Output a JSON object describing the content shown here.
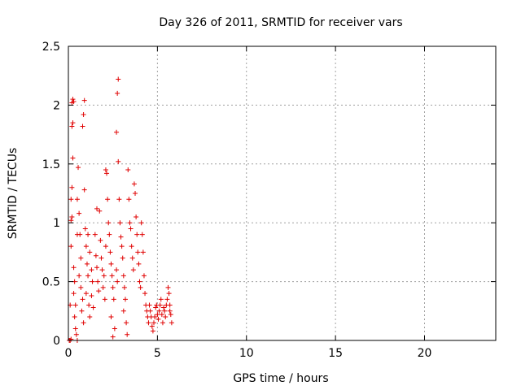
{
  "chart_data": {
    "type": "scatter",
    "title": "Day 326 of 2011, SRMTID for receiver vars",
    "xlabel": "GPS time / hours",
    "ylabel": "SRMTID / TECUs",
    "xlim": [
      0,
      24
    ],
    "ylim": [
      0,
      2.5
    ],
    "grid": true,
    "marker": "+",
    "color": "#e00000",
    "xticks": [
      0,
      5,
      10,
      15,
      20
    ],
    "xtick_labels": [
      "0",
      "5",
      "10",
      "15",
      "20"
    ],
    "yticks": [
      0,
      0.5,
      1,
      1.5,
      2,
      2.5
    ],
    "ytick_labels": [
      "0",
      "0.5",
      "1",
      "1.5",
      "2",
      "2.5"
    ],
    "series": [
      {
        "name": "SRMTID",
        "points": [
          [
            0.05,
            0.0
          ],
          [
            0.1,
            0.0
          ],
          [
            0.15,
            0.01
          ],
          [
            0.1,
            0.3
          ],
          [
            0.15,
            0.8
          ],
          [
            0.15,
            1.02
          ],
          [
            0.2,
            1.05
          ],
          [
            0.15,
            1.2
          ],
          [
            0.2,
            1.3
          ],
          [
            0.25,
            1.55
          ],
          [
            0.2,
            1.82
          ],
          [
            0.25,
            1.85
          ],
          [
            0.2,
            2.02
          ],
          [
            0.25,
            2.05
          ],
          [
            0.3,
            2.03
          ],
          [
            0.3,
            0.62
          ],
          [
            0.35,
            0.5
          ],
          [
            0.3,
            0.4
          ],
          [
            0.4,
            0.3
          ],
          [
            0.35,
            0.2
          ],
          [
            0.4,
            0.1
          ],
          [
            0.45,
            0.05
          ],
          [
            0.5,
            0.0
          ],
          [
            0.5,
            0.9
          ],
          [
            0.55,
            1.47
          ],
          [
            0.5,
            1.2
          ],
          [
            0.6,
            1.08
          ],
          [
            0.65,
            0.9
          ],
          [
            0.7,
            0.7
          ],
          [
            0.6,
            0.55
          ],
          [
            0.7,
            0.45
          ],
          [
            0.8,
            0.35
          ],
          [
            0.75,
            0.25
          ],
          [
            0.85,
            0.15
          ],
          [
            0.8,
            1.82
          ],
          [
            0.85,
            1.92
          ],
          [
            0.9,
            2.04
          ],
          [
            0.9,
            1.28
          ],
          [
            0.95,
            0.95
          ],
          [
            1.0,
            0.8
          ],
          [
            1.05,
            0.65
          ],
          [
            1.1,
            0.55
          ],
          [
            1.0,
            0.4
          ],
          [
            1.15,
            0.3
          ],
          [
            1.2,
            0.2
          ],
          [
            1.1,
            0.9
          ],
          [
            1.2,
            0.75
          ],
          [
            1.3,
            0.6
          ],
          [
            1.35,
            0.5
          ],
          [
            1.3,
            0.38
          ],
          [
            1.4,
            0.28
          ],
          [
            1.5,
            0.9
          ],
          [
            1.55,
            0.72
          ],
          [
            1.6,
            0.62
          ],
          [
            1.65,
            0.5
          ],
          [
            1.7,
            0.42
          ],
          [
            1.6,
            1.12
          ],
          [
            1.75,
            1.1
          ],
          [
            1.8,
            0.85
          ],
          [
            1.85,
            0.7
          ],
          [
            1.9,
            0.6
          ],
          [
            2.0,
            0.55
          ],
          [
            1.95,
            0.45
          ],
          [
            2.05,
            0.35
          ],
          [
            2.1,
            1.45
          ],
          [
            2.15,
            1.42
          ],
          [
            2.2,
            1.2
          ],
          [
            2.25,
            1.0
          ],
          [
            2.3,
            0.9
          ],
          [
            2.1,
            0.8
          ],
          [
            2.35,
            0.75
          ],
          [
            2.4,
            0.65
          ],
          [
            2.45,
            0.55
          ],
          [
            2.5,
            0.45
          ],
          [
            2.55,
            0.35
          ],
          [
            2.4,
            0.2
          ],
          [
            2.6,
            0.1
          ],
          [
            2.5,
            0.03
          ],
          [
            2.7,
            0.6
          ],
          [
            2.75,
            0.5
          ],
          [
            2.8,
            2.22
          ],
          [
            2.75,
            2.1
          ],
          [
            2.7,
            1.77
          ],
          [
            2.8,
            1.52
          ],
          [
            2.85,
            1.2
          ],
          [
            2.9,
            1.0
          ],
          [
            2.95,
            0.88
          ],
          [
            3.0,
            0.8
          ],
          [
            3.05,
            0.7
          ],
          [
            3.1,
            0.55
          ],
          [
            3.15,
            0.45
          ],
          [
            3.2,
            0.35
          ],
          [
            3.1,
            0.25
          ],
          [
            3.25,
            0.15
          ],
          [
            3.3,
            0.05
          ],
          [
            3.35,
            1.45
          ],
          [
            3.4,
            1.2
          ],
          [
            3.45,
            1.0
          ],
          [
            3.5,
            0.95
          ],
          [
            3.55,
            0.8
          ],
          [
            3.6,
            0.7
          ],
          [
            3.65,
            0.6
          ],
          [
            3.7,
            1.33
          ],
          [
            3.75,
            1.25
          ],
          [
            3.8,
            1.05
          ],
          [
            3.85,
            0.9
          ],
          [
            3.9,
            0.75
          ],
          [
            3.95,
            0.65
          ],
          [
            4.0,
            0.5
          ],
          [
            4.05,
            0.45
          ],
          [
            4.1,
            1.0
          ],
          [
            4.15,
            0.9
          ],
          [
            4.2,
            0.75
          ],
          [
            4.25,
            0.55
          ],
          [
            4.3,
            0.4
          ],
          [
            4.35,
            0.3
          ],
          [
            4.4,
            0.25
          ],
          [
            4.45,
            0.2
          ],
          [
            4.5,
            0.15
          ],
          [
            4.55,
            0.3
          ],
          [
            4.6,
            0.25
          ],
          [
            4.65,
            0.2
          ],
          [
            4.7,
            0.12
          ],
          [
            4.75,
            0.08
          ],
          [
            4.8,
            0.15
          ],
          [
            4.85,
            0.2
          ],
          [
            4.9,
            0.28
          ],
          [
            4.95,
            0.3
          ],
          [
            5.0,
            0.22
          ],
          [
            5.05,
            0.18
          ],
          [
            5.1,
            0.25
          ],
          [
            5.15,
            0.3
          ],
          [
            5.2,
            0.35
          ],
          [
            5.25,
            0.22
          ],
          [
            5.3,
            0.15
          ],
          [
            5.35,
            0.28
          ],
          [
            5.4,
            0.25
          ],
          [
            5.45,
            0.2
          ],
          [
            5.5,
            0.3
          ],
          [
            5.55,
            0.35
          ],
          [
            5.6,
            0.45
          ],
          [
            5.65,
            0.4
          ],
          [
            5.7,
            0.3
          ],
          [
            5.75,
            0.22
          ],
          [
            5.8,
            0.15
          ],
          [
            5.7,
            0.25
          ]
        ]
      }
    ]
  }
}
